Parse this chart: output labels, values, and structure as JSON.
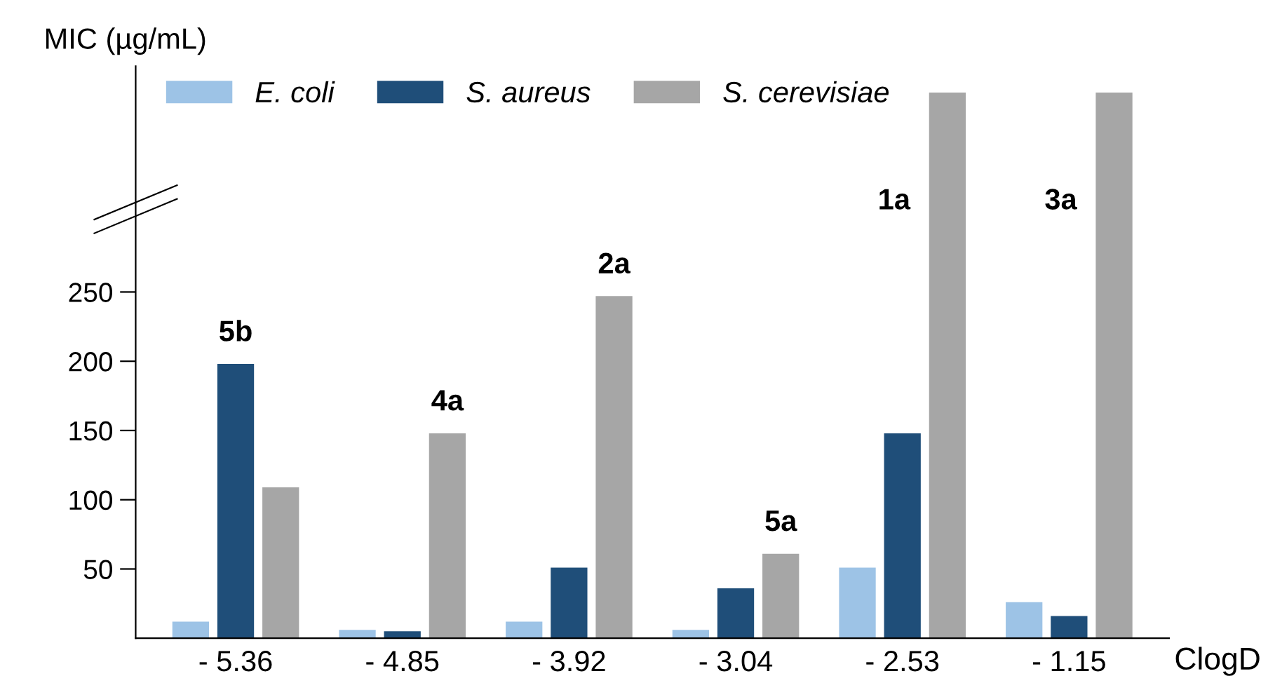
{
  "chart_data": {
    "type": "bar",
    "categories": [
      "- 5.36",
      "- 4.85",
      "- 3.92",
      "- 3.04",
      "- 2.53",
      "- 1.15"
    ],
    "series": [
      {
        "name": "E. coli",
        "color": "#9dc3e6",
        "values": [
          12,
          6,
          12,
          6,
          51,
          26
        ]
      },
      {
        "name": "S. aureus",
        "color": "#1f4e79",
        "values": [
          198,
          5,
          51,
          36,
          148,
          16
        ]
      },
      {
        "name": "S. cerevisiae",
        "color": "#a6a6a6",
        "values": [
          109,
          148,
          247,
          61,
          394,
          394
        ]
      }
    ],
    "ylabel": "MIC (µg/mL)",
    "xlabel": "ClogD",
    "ylim": [
      0,
      413
    ],
    "yticks": [
      50,
      100,
      150,
      200,
      250
    ],
    "annotations": [
      "5b",
      "4a",
      "2a",
      "5a",
      "1a",
      "3a"
    ],
    "legend": "top",
    "grid": false
  }
}
